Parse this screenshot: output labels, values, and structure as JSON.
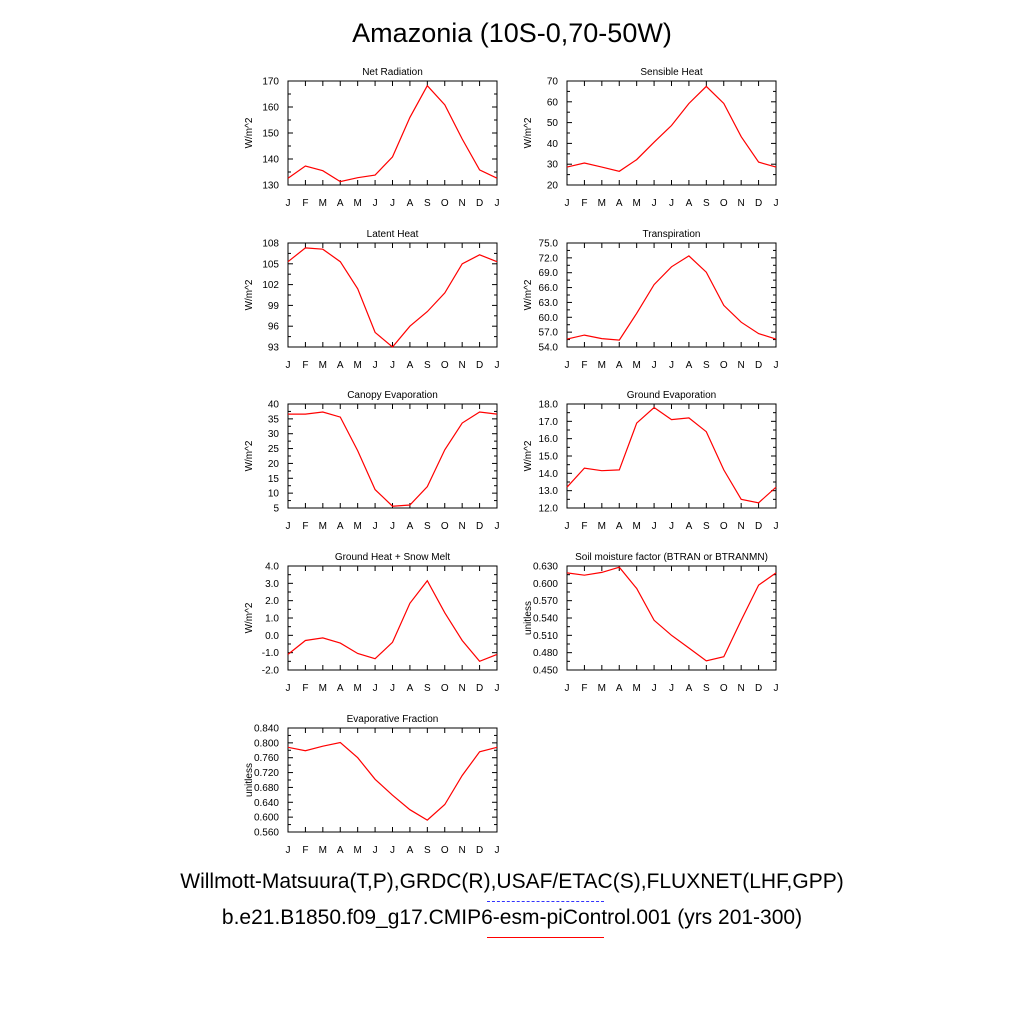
{
  "title": "Amazonia (10S-0,70-50W)",
  "legend": [
    {
      "label": "Willmott-Matsuura(T,P),GRDC(R),USAF/ETAC(S),FLUXNET(LHF,GPP)",
      "color": "#3333ff",
      "style": "dashed"
    },
    {
      "label": "b.e21.B1850.f09_g17.CMIP6-esm-piControl.001 (yrs 201-300)",
      "color": "#ff0000",
      "style": "solid"
    }
  ],
  "chart_data": [
    {
      "type": "line",
      "title": "Net Radiation",
      "ylabel": "W/m^2",
      "categories": [
        "J",
        "F",
        "M",
        "A",
        "M",
        "J",
        "J",
        "A",
        "S",
        "O",
        "N",
        "D",
        "J"
      ],
      "ylim": [
        130,
        170
      ],
      "yticks": [
        "130",
        "140",
        "150",
        "160",
        "170"
      ],
      "series": [
        {
          "name": "b.e21.B1850.f09_g17.CMIP6-esm-piControl.001",
          "color": "#ff0000",
          "values": [
            132.6,
            137.3,
            135.5,
            131.3,
            132.8,
            133.8,
            140.8,
            156.0,
            168.2,
            160.8,
            147.7,
            135.8,
            132.6
          ]
        }
      ]
    },
    {
      "type": "line",
      "title": "Sensible Heat",
      "ylabel": "W/m^2",
      "categories": [
        "J",
        "F",
        "M",
        "A",
        "M",
        "J",
        "J",
        "A",
        "S",
        "O",
        "N",
        "D",
        "J"
      ],
      "ylim": [
        20,
        70
      ],
      "yticks": [
        "20",
        "30",
        "40",
        "50",
        "60",
        "70"
      ],
      "series": [
        {
          "name": "b.e21.B1850.f09_g17.CMIP6-esm-piControl.001",
          "color": "#ff0000",
          "values": [
            28.6,
            30.6,
            28.6,
            26.6,
            32.2,
            40.6,
            48.6,
            59.2,
            67.4,
            59.2,
            43.2,
            31.0,
            28.6
          ]
        }
      ]
    },
    {
      "type": "line",
      "title": "Latent Heat",
      "ylabel": "W/m^2",
      "categories": [
        "J",
        "F",
        "M",
        "A",
        "M",
        "J",
        "J",
        "A",
        "S",
        "O",
        "N",
        "D",
        "J"
      ],
      "ylim": [
        93,
        108
      ],
      "yticks": [
        "93",
        "96",
        "99",
        "102",
        "105",
        "108"
      ],
      "series": [
        {
          "name": "b.e21.B1850.f09_g17.CMIP6-esm-piControl.001",
          "color": "#ff0000",
          "values": [
            105.3,
            107.3,
            107.1,
            105.3,
            101.4,
            95.1,
            93.0,
            96.0,
            98.1,
            100.8,
            105.0,
            106.3,
            105.3
          ]
        }
      ]
    },
    {
      "type": "line",
      "title": "Transpiration",
      "ylabel": "W/m^2",
      "categories": [
        "J",
        "F",
        "M",
        "A",
        "M",
        "J",
        "J",
        "A",
        "S",
        "O",
        "N",
        "D",
        "J"
      ],
      "ylim": [
        54,
        75
      ],
      "yticks": [
        "54.0",
        "57.0",
        "60.0",
        "63.0",
        "66.0",
        "69.0",
        "72.0",
        "75.0"
      ],
      "series": [
        {
          "name": "b.e21.B1850.f09_g17.CMIP6-esm-piControl.001",
          "color": "#ff0000",
          "values": [
            55.6,
            56.4,
            55.7,
            55.4,
            60.8,
            66.6,
            70.2,
            72.4,
            69.1,
            62.4,
            59.0,
            56.7,
            55.6
          ]
        }
      ]
    },
    {
      "type": "line",
      "title": "Canopy Evaporation",
      "ylabel": "W/m^2",
      "categories": [
        "J",
        "F",
        "M",
        "A",
        "M",
        "J",
        "J",
        "A",
        "S",
        "O",
        "N",
        "D",
        "J"
      ],
      "ylim": [
        5,
        40
      ],
      "yticks": [
        "5",
        "10",
        "15",
        "20",
        "25",
        "30",
        "35",
        "40"
      ],
      "series": [
        {
          "name": "b.e21.B1850.f09_g17.CMIP6-esm-piControl.001",
          "color": "#ff0000",
          "values": [
            36.6,
            36.6,
            37.3,
            35.6,
            24.3,
            11.2,
            5.6,
            6.0,
            12.2,
            24.6,
            33.6,
            37.3,
            36.6
          ]
        }
      ]
    },
    {
      "type": "line",
      "title": "Ground Evaporation",
      "ylabel": "W/m^2",
      "categories": [
        "J",
        "F",
        "M",
        "A",
        "M",
        "J",
        "J",
        "A",
        "S",
        "O",
        "N",
        "D",
        "J"
      ],
      "ylim": [
        12,
        18
      ],
      "yticks": [
        "12.0",
        "13.0",
        "14.0",
        "15.0",
        "16.0",
        "17.0",
        "18.0"
      ],
      "series": [
        {
          "name": "b.e21.B1850.f09_g17.CMIP6-esm-piControl.001",
          "color": "#ff0000",
          "values": [
            13.2,
            14.3,
            14.15,
            14.2,
            16.9,
            17.8,
            17.1,
            17.2,
            16.4,
            14.2,
            12.5,
            12.3,
            13.2
          ]
        }
      ]
    },
    {
      "type": "line",
      "title": "Ground Heat + Snow Melt",
      "ylabel": "W/m^2",
      "categories": [
        "J",
        "F",
        "M",
        "A",
        "M",
        "J",
        "J",
        "A",
        "S",
        "O",
        "N",
        "D",
        "J"
      ],
      "ylim": [
        -2,
        4
      ],
      "yticks": [
        "-2.0",
        "-1.0",
        "0.0",
        "1.0",
        "2.0",
        "3.0",
        "4.0"
      ],
      "series": [
        {
          "name": "b.e21.B1850.f09_g17.CMIP6-esm-piControl.001",
          "color": "#ff0000",
          "values": [
            -1.1,
            -0.3,
            -0.15,
            -0.45,
            -1.05,
            -1.35,
            -0.4,
            1.85,
            3.15,
            1.3,
            -0.3,
            -1.5,
            -1.1
          ]
        }
      ]
    },
    {
      "type": "line",
      "title": "Soil moisture factor (BTRAN or BTRANMN)",
      "ylabel": "unitless",
      "categories": [
        "J",
        "F",
        "M",
        "A",
        "M",
        "J",
        "J",
        "A",
        "S",
        "O",
        "N",
        "D",
        "J"
      ],
      "ylim": [
        0.45,
        0.63
      ],
      "yticks": [
        "0.450",
        "0.480",
        "0.510",
        "0.540",
        "0.570",
        "0.600",
        "0.630"
      ],
      "series": [
        {
          "name": "b.e21.B1850.f09_g17.CMIP6-esm-piControl.001",
          "color": "#ff0000",
          "values": [
            0.618,
            0.614,
            0.619,
            0.628,
            0.591,
            0.536,
            0.51,
            0.488,
            0.466,
            0.473,
            0.536,
            0.597,
            0.618
          ]
        }
      ]
    },
    {
      "type": "line",
      "title": "Evaporative Fraction",
      "ylabel": "unitless",
      "categories": [
        "J",
        "F",
        "M",
        "A",
        "M",
        "J",
        "J",
        "A",
        "S",
        "O",
        "N",
        "D",
        "J"
      ],
      "ylim": [
        0.56,
        0.84
      ],
      "yticks": [
        "0.560",
        "0.600",
        "0.640",
        "0.680",
        "0.720",
        "0.760",
        "0.800",
        "0.840"
      ],
      "series": [
        {
          "name": "b.e21.B1850.f09_g17.CMIP6-esm-piControl.001",
          "color": "#ff0000",
          "values": [
            0.788,
            0.779,
            0.791,
            0.801,
            0.76,
            0.702,
            0.659,
            0.62,
            0.592,
            0.634,
            0.712,
            0.776,
            0.788
          ]
        }
      ]
    }
  ]
}
